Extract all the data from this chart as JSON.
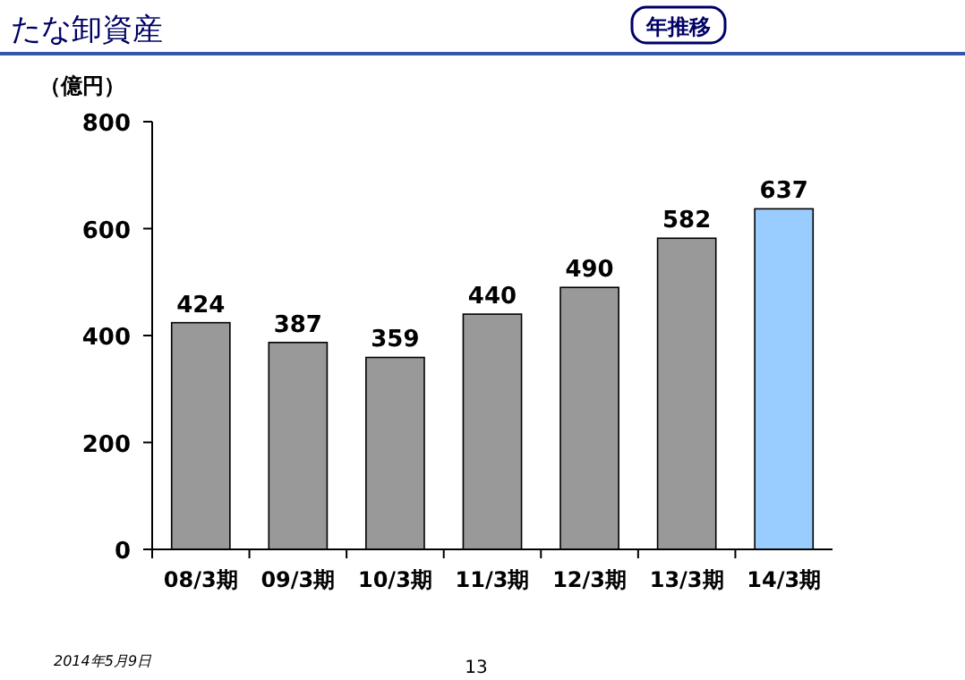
{
  "chart_data": {
    "type": "bar",
    "title": "たな卸資産",
    "subtitle": "年推移",
    "ylabel": "（億円）",
    "categories": [
      "08/3期",
      "09/3期",
      "10/3期",
      "11/3期",
      "12/3期",
      "13/3期",
      "14/3期"
    ],
    "values": [
      424,
      387,
      359,
      440,
      490,
      582,
      637
    ],
    "colors": [
      "#999999",
      "#999999",
      "#999999",
      "#999999",
      "#999999",
      "#999999",
      "#99ccff"
    ],
    "ylim": [
      0,
      800
    ],
    "yticks": [
      0,
      200,
      400,
      600,
      800
    ],
    "data_labels": true,
    "annotations": [
      "2014年5月9日",
      "13"
    ]
  }
}
